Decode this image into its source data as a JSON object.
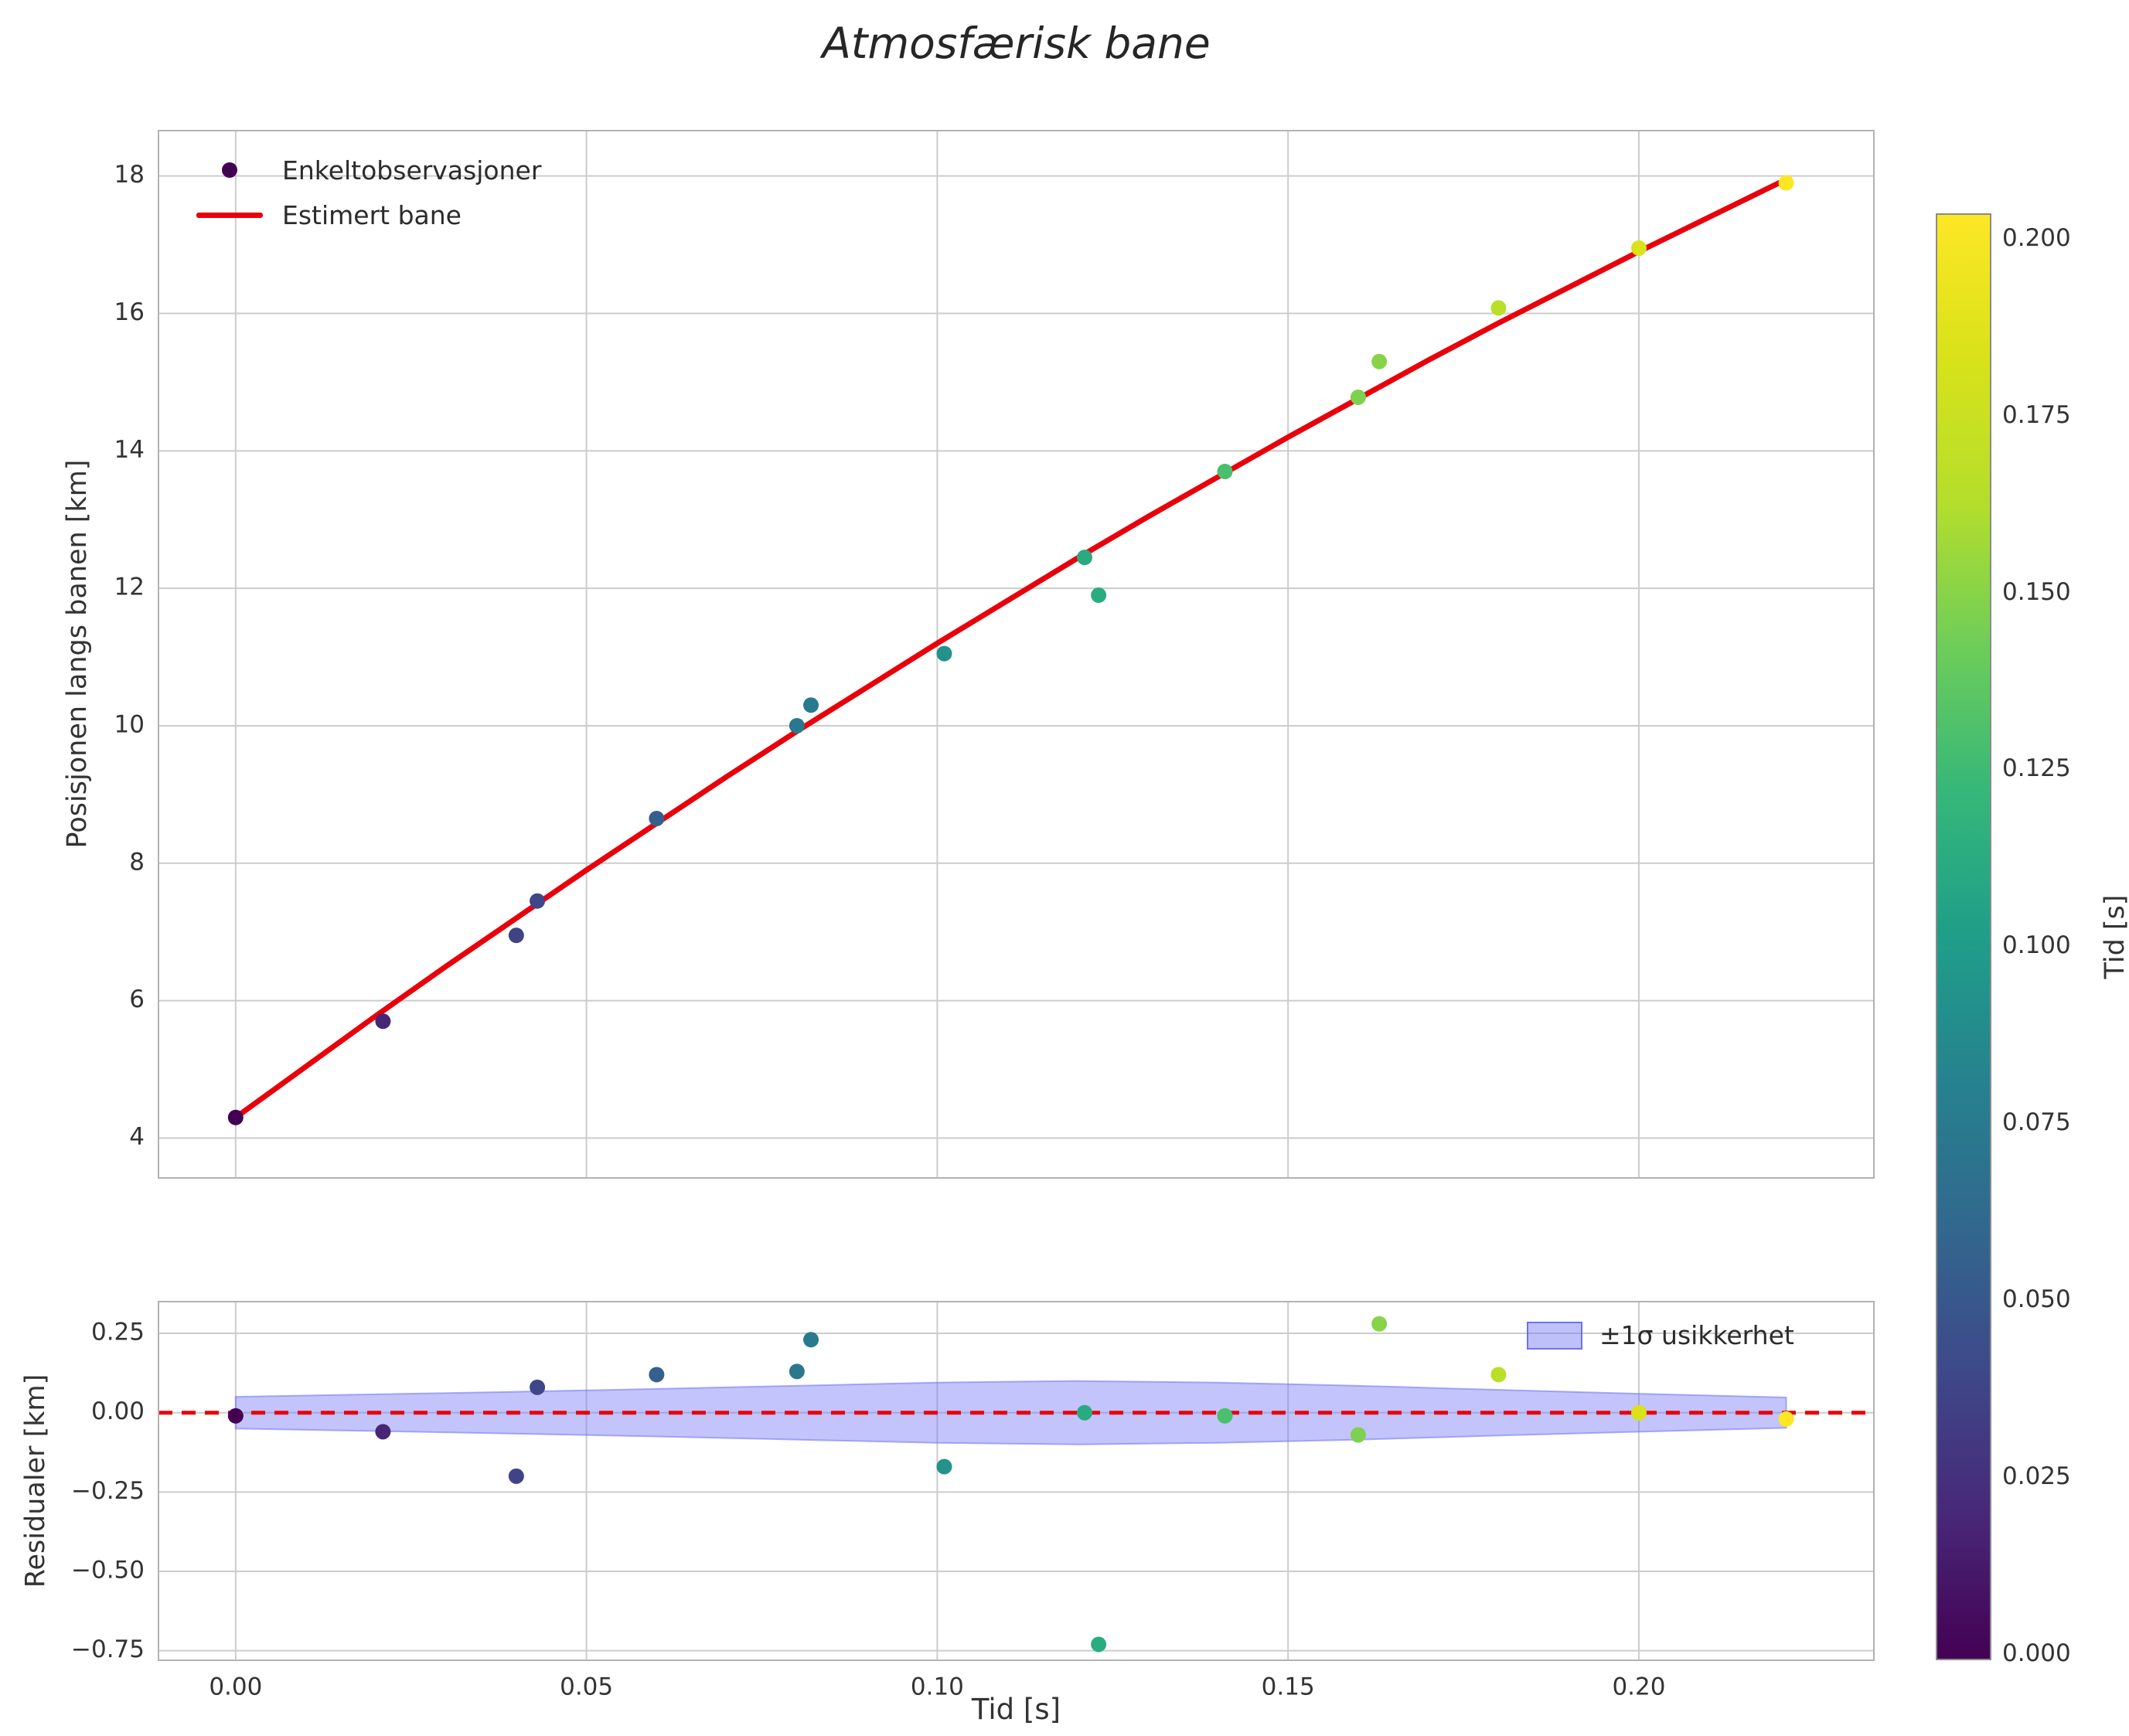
{
  "figure": {
    "title": "Atmosfærisk bane"
  },
  "trajectory_plot": {
    "ylabel": "Posisjonen langs banen [km]",
    "legend": {
      "observations": "Enkeltobservasjoner",
      "fit": "Estimert bane"
    }
  },
  "residual_plot": {
    "ylabel": "Residualer [km]",
    "xlabel": "Tid [s]",
    "legend_band": "±1σ usikkerhet"
  },
  "colorbar": {
    "label": "Tid [s]",
    "tick_labels": [
      "0.200",
      "0.175",
      "0.150",
      "0.125",
      "0.100",
      "0.075",
      "0.050",
      "0.025",
      "0.000"
    ],
    "colormap": "viridis",
    "stops": [
      [
        "0.0",
        "#440154"
      ],
      [
        "0.1",
        "#482878"
      ],
      [
        "0.2",
        "#3e4989"
      ],
      [
        "0.3",
        "#31688e"
      ],
      [
        "0.4",
        "#26828e"
      ],
      [
        "0.5",
        "#1f9e89"
      ],
      [
        "0.6",
        "#35b779"
      ],
      [
        "0.7",
        "#6dcd59"
      ],
      [
        "0.8",
        "#b4de2c"
      ],
      [
        "0.9",
        "#d8e219"
      ],
      [
        "1.0",
        "#fde725"
      ]
    ]
  },
  "colors": {
    "fit_line": "#e8000b",
    "band_fill": "#6e73f5",
    "first_observation": "#440154"
  },
  "chart_data": [
    {
      "name": "trajectory",
      "type": "scatter",
      "title": "Atmosfærisk bane",
      "xlabel": "",
      "ylabel": "Posisjonen langs banen [km]",
      "xlim": [
        -0.011,
        0.2335
      ],
      "ylim": [
        3.42,
        18.66
      ],
      "grid": true,
      "legend_position": "upper left",
      "xticks": {
        "values": [
          0.0,
          0.05,
          0.1,
          0.15,
          0.2
        ],
        "labels": []
      },
      "yticks": {
        "values": [
          4,
          6,
          8,
          10,
          12,
          14,
          16,
          18
        ],
        "labels": [
          "4",
          "6",
          "8",
          "10",
          "12",
          "14",
          "16",
          "18"
        ]
      },
      "color_norm": {
        "vmin": 0.0,
        "vmax": 0.221
      },
      "series": [
        {
          "name": "Estimert bane",
          "type": "line",
          "color": "#e8000b",
          "x": [
            0.0,
            0.01,
            0.02,
            0.03,
            0.04,
            0.05,
            0.06,
            0.07,
            0.08,
            0.09,
            0.1,
            0.11,
            0.12,
            0.13,
            0.14,
            0.15,
            0.16,
            0.17,
            0.18,
            0.19,
            0.2,
            0.21,
            0.22
          ],
          "y": [
            4.3,
            5.04,
            5.78,
            6.5,
            7.2,
            7.9,
            8.58,
            9.26,
            9.92,
            10.56,
            11.2,
            11.82,
            12.44,
            13.04,
            13.62,
            14.2,
            14.76,
            15.32,
            15.86,
            16.38,
            16.9,
            17.4,
            17.9
          ]
        },
        {
          "name": "Enkeltobservasjoner",
          "type": "scatter",
          "color_by": "x",
          "x": [
            0.0,
            0.021,
            0.04,
            0.043,
            0.06,
            0.08,
            0.082,
            0.101,
            0.121,
            0.123,
            0.141,
            0.16,
            0.163,
            0.18,
            0.2,
            0.221
          ],
          "y": [
            4.3,
            5.7,
            6.95,
            7.45,
            8.65,
            10.0,
            10.3,
            11.05,
            12.45,
            11.9,
            13.7,
            14.78,
            15.3,
            16.08,
            16.95,
            17.9
          ]
        }
      ]
    },
    {
      "name": "residuals",
      "type": "scatter",
      "title": "",
      "xlabel": "Tid [s]",
      "ylabel": "Residualer [km]",
      "xlim": [
        -0.011,
        0.2335
      ],
      "ylim": [
        -0.78,
        0.35
      ],
      "grid": true,
      "legend_position": "upper right",
      "xticks": {
        "values": [
          0.0,
          0.05,
          0.1,
          0.15,
          0.2
        ],
        "labels": [
          "0.00",
          "0.05",
          "0.10",
          "0.15",
          "0.20"
        ]
      },
      "yticks": {
        "values": [
          0.25,
          0.0,
          -0.25,
          -0.5,
          -0.75
        ],
        "labels": [
          "0.25",
          "0.00",
          "−0.25",
          "−0.50",
          "−0.75"
        ]
      },
      "color_norm": {
        "vmin": 0.0,
        "vmax": 0.221
      },
      "zero_line": {
        "y": 0.0,
        "color": "#e8000b",
        "style": "dashed"
      },
      "band": {
        "label": "±1σ usikkerhet",
        "fill": "#6e73f5",
        "opacity": 0.42,
        "x": [
          0.0,
          0.02,
          0.04,
          0.06,
          0.08,
          0.1,
          0.12,
          0.14,
          0.16,
          0.18,
          0.2,
          0.221
        ],
        "upper": [
          0.05,
          0.058,
          0.066,
          0.075,
          0.085,
          0.095,
          0.1,
          0.095,
          0.085,
          0.072,
          0.06,
          0.048
        ],
        "lower": [
          -0.05,
          -0.058,
          -0.066,
          -0.075,
          -0.085,
          -0.095,
          -0.1,
          -0.095,
          -0.085,
          -0.072,
          -0.06,
          -0.048
        ]
      },
      "series": [
        {
          "name": "residuals",
          "type": "scatter",
          "color_by": "x",
          "x": [
            0.0,
            0.021,
            0.04,
            0.043,
            0.06,
            0.08,
            0.082,
            0.101,
            0.121,
            0.123,
            0.141,
            0.16,
            0.163,
            0.18,
            0.2,
            0.221
          ],
          "y": [
            -0.01,
            -0.06,
            -0.2,
            0.08,
            0.12,
            0.13,
            0.23,
            -0.17,
            0.0,
            -0.73,
            -0.01,
            -0.07,
            0.28,
            0.12,
            0.0,
            -0.02
          ]
        }
      ]
    }
  ]
}
